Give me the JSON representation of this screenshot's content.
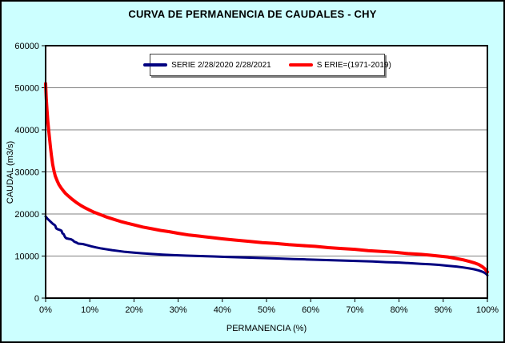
{
  "title": "CURVA DE PERMANENCIA DE CAUDALES - CHY",
  "colors": {
    "window_background": "#CCFFFF",
    "plot_background": "#FFFFFF",
    "gridline": "#808080",
    "axis": "#000000",
    "series_blue": "#000080",
    "series_red": "#FF0000",
    "legend_border": "#404040",
    "legend_shadow": "#808080"
  },
  "legend": {
    "position": "top-center",
    "items": [
      {
        "label": "SERIE 2/28/2020 2/28/2021",
        "color": "#000080"
      },
      {
        "label": "S ERIE=(1971-2019)",
        "color": "#FF0000"
      }
    ]
  },
  "axes": {
    "x": {
      "title": "PERMANENCIA (%)",
      "tick_labels": [
        "0%",
        "10%",
        "20%",
        "30%",
        "40%",
        "50%",
        "60%",
        "70%",
        "80%",
        "90%",
        "100%"
      ],
      "min": 0,
      "max": 100
    },
    "y": {
      "title": "CAUDAL (m3/s)",
      "tick_labels": [
        "0",
        "10000",
        "20000",
        "30000",
        "40000",
        "50000",
        "60000"
      ],
      "min": 0,
      "max": 60000
    }
  },
  "chart_data": {
    "type": "line",
    "title": "CURVA DE PERMANENCIA DE CAUDALES - CHY",
    "xlabel": "PERMANENCIA (%)",
    "ylabel": "CAUDAL (m3/s)",
    "xlim": [
      0,
      100
    ],
    "ylim": [
      0,
      60000
    ],
    "grid": "horizontal",
    "legend_position": "top-center",
    "series": [
      {
        "name": "SERIE 2/28/2020 2/28/2021",
        "color": "#000080",
        "width": 3,
        "points": [
          [
            0,
            19400
          ],
          [
            0.4,
            18900
          ],
          [
            0.8,
            18500
          ],
          [
            1.2,
            18100
          ],
          [
            1.6,
            17700
          ],
          [
            2,
            17400
          ],
          [
            2.2,
            17200
          ],
          [
            2.4,
            16600
          ],
          [
            2.7,
            16400
          ],
          [
            3.2,
            16200
          ],
          [
            3.6,
            16000
          ],
          [
            3.8,
            15400
          ],
          [
            4.1,
            15200
          ],
          [
            4.4,
            14500
          ],
          [
            4.7,
            14200
          ],
          [
            5.2,
            14100
          ],
          [
            5.7,
            14000
          ],
          [
            6.1,
            13800
          ],
          [
            6.5,
            13400
          ],
          [
            7,
            13200
          ],
          [
            7.4,
            12950
          ],
          [
            8.4,
            12850
          ],
          [
            9.4,
            12600
          ],
          [
            10.4,
            12300
          ],
          [
            11.4,
            12050
          ],
          [
            12.4,
            11850
          ],
          [
            13.5,
            11650
          ],
          [
            15,
            11400
          ],
          [
            16.5,
            11200
          ],
          [
            18,
            11000
          ],
          [
            20,
            10800
          ],
          [
            22,
            10650
          ],
          [
            24,
            10500
          ],
          [
            26.5,
            10350
          ],
          [
            29,
            10200
          ],
          [
            32,
            10100
          ],
          [
            35,
            10000
          ],
          [
            38,
            9900
          ],
          [
            41,
            9800
          ],
          [
            44,
            9700
          ],
          [
            47,
            9600
          ],
          [
            50,
            9500
          ],
          [
            53,
            9400
          ],
          [
            56,
            9300
          ],
          [
            59,
            9200
          ],
          [
            62,
            9100
          ],
          [
            65,
            9000
          ],
          [
            68,
            8900
          ],
          [
            71,
            8800
          ],
          [
            74,
            8700
          ],
          [
            77,
            8550
          ],
          [
            80,
            8450
          ],
          [
            82.5,
            8300
          ],
          [
            85,
            8150
          ],
          [
            87,
            8050
          ],
          [
            89,
            7900
          ],
          [
            91,
            7700
          ],
          [
            93,
            7500
          ],
          [
            94.5,
            7300
          ],
          [
            96,
            7050
          ],
          [
            97,
            6850
          ],
          [
            98,
            6600
          ],
          [
            98.8,
            6300
          ],
          [
            99.4,
            6000
          ],
          [
            99.8,
            5700
          ],
          [
            100,
            5400
          ]
        ]
      },
      {
        "name": "S ERIE=(1971-2019)",
        "color": "#FF0000",
        "width": 4,
        "points": [
          [
            0,
            51000
          ],
          [
            0.15,
            47500
          ],
          [
            0.3,
            44800
          ],
          [
            0.5,
            42000
          ],
          [
            0.7,
            39800
          ],
          [
            0.9,
            37800
          ],
          [
            1.1,
            35800
          ],
          [
            1.3,
            34000
          ],
          [
            1.6,
            31800
          ],
          [
            1.9,
            30200
          ],
          [
            2.2,
            29000
          ],
          [
            2.6,
            27900
          ],
          [
            3,
            27000
          ],
          [
            3.5,
            26200
          ],
          [
            4,
            25500
          ],
          [
            4.5,
            24900
          ],
          [
            5,
            24400
          ],
          [
            6,
            23500
          ],
          [
            7,
            22700
          ],
          [
            8,
            22000
          ],
          [
            9,
            21400
          ],
          [
            10,
            20900
          ],
          [
            11,
            20400
          ],
          [
            12,
            20000
          ],
          [
            13,
            19600
          ],
          [
            14,
            19200
          ],
          [
            15.5,
            18700
          ],
          [
            17,
            18200
          ],
          [
            18.5,
            17800
          ],
          [
            20,
            17400
          ],
          [
            22,
            16900
          ],
          [
            24,
            16500
          ],
          [
            26,
            16100
          ],
          [
            28,
            15800
          ],
          [
            30,
            15400
          ],
          [
            32.5,
            15000
          ],
          [
            35,
            14700
          ],
          [
            37.5,
            14400
          ],
          [
            40,
            14100
          ],
          [
            43,
            13800
          ],
          [
            46,
            13500
          ],
          [
            49,
            13200
          ],
          [
            52,
            13000
          ],
          [
            55,
            12700
          ],
          [
            58,
            12500
          ],
          [
            61,
            12300
          ],
          [
            64,
            12000
          ],
          [
            67,
            11800
          ],
          [
            70,
            11600
          ],
          [
            73,
            11300
          ],
          [
            76,
            11100
          ],
          [
            79,
            10900
          ],
          [
            82,
            10600
          ],
          [
            85,
            10400
          ],
          [
            87,
            10200
          ],
          [
            89,
            10000
          ],
          [
            91,
            9800
          ],
          [
            93,
            9400
          ],
          [
            94.5,
            9100
          ],
          [
            96,
            8700
          ],
          [
            97,
            8400
          ],
          [
            98,
            8000
          ],
          [
            98.8,
            7500
          ],
          [
            99.4,
            7000
          ],
          [
            99.8,
            6500
          ],
          [
            100,
            6200
          ]
        ]
      }
    ]
  }
}
